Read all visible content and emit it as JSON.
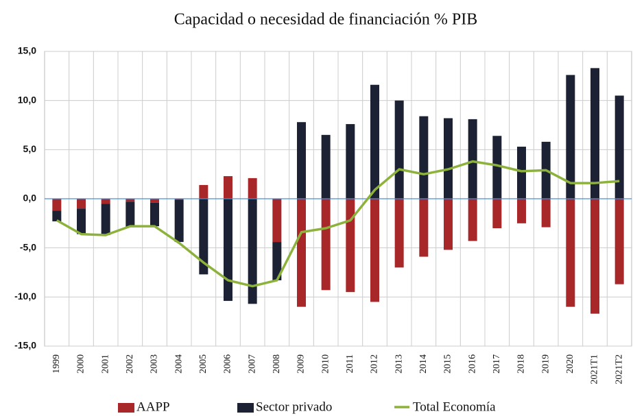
{
  "chart_data": {
    "type": "bar",
    "title": "Capacidad o necesidad de financiación % PIB",
    "categories": [
      "1999",
      "2000",
      "2001",
      "2002",
      "2003",
      "2004",
      "2005",
      "2006",
      "2007",
      "2008",
      "2009",
      "2010",
      "2011",
      "2012",
      "2013",
      "2014",
      "2015",
      "2016",
      "2017",
      "2018",
      "2019",
      "2020",
      "2021T1",
      "2021T2"
    ],
    "series": [
      {
        "name": "AAPP",
        "color": "#a8282a",
        "values": [
          -1.2,
          -1.0,
          -0.5,
          -0.3,
          -0.4,
          -0.1,
          1.4,
          2.3,
          2.1,
          -4.4,
          -11.0,
          -9.3,
          -9.5,
          -10.5,
          -7.0,
          -5.9,
          -5.2,
          -4.3,
          -3.0,
          -2.5,
          -2.9,
          -11.0,
          -11.7,
          -8.7
        ]
      },
      {
        "name": "Sector privado",
        "color": "#1c2233",
        "values": [
          -1.1,
          -2.6,
          -3.2,
          -2.6,
          -2.4,
          -4.3,
          -7.7,
          -10.4,
          -10.7,
          -3.9,
          7.8,
          6.5,
          7.6,
          11.6,
          10.0,
          8.4,
          8.2,
          8.1,
          6.4,
          5.3,
          5.8,
          12.6,
          13.3,
          10.5
        ]
      },
      {
        "name": "Total Economía",
        "color": "#8db23c",
        "type": "line",
        "values": [
          -2.2,
          -3.6,
          -3.7,
          -2.8,
          -2.8,
          -4.5,
          -6.5,
          -8.3,
          -8.9,
          -8.3,
          -3.4,
          -3.0,
          -2.2,
          0.9,
          3.0,
          2.5,
          3.0,
          3.8,
          3.4,
          2.8,
          2.9,
          1.6,
          1.6,
          1.8
        ]
      }
    ],
    "ylim": [
      -15,
      15
    ],
    "yticks": [
      {
        "value": -15,
        "label": "-15,0"
      },
      {
        "value": -10,
        "label": "-10,0"
      },
      {
        "value": -5,
        "label": "-5,0"
      },
      {
        "value": 0,
        "label": "0,0"
      },
      {
        "value": 5,
        "label": "5,0"
      },
      {
        "value": 10,
        "label": "10,0"
      },
      {
        "value": 15,
        "label": "15,0"
      }
    ],
    "grid": true,
    "legend": "bottom"
  }
}
